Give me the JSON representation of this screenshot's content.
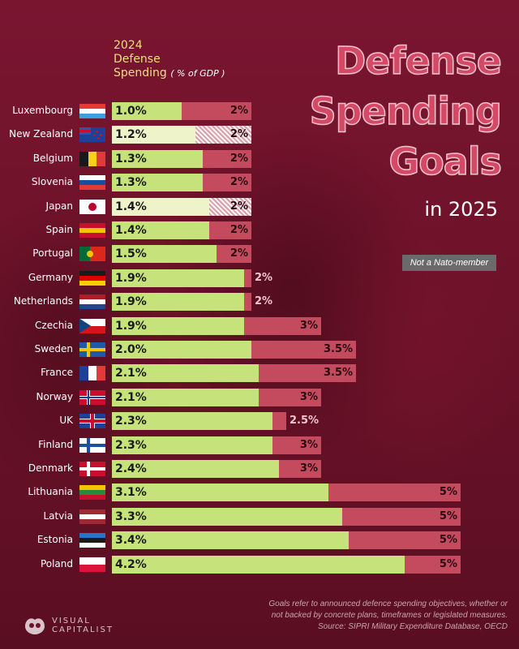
{
  "header": {
    "label_lines": [
      "2024",
      "Defense",
      "Spending"
    ],
    "unit": "( % of GDP )"
  },
  "title_lines": [
    "Defense",
    "Spending",
    "Goals"
  ],
  "subtitle": "in 2025",
  "legend": {
    "not_nato": "Not a Nato-member"
  },
  "footnote": [
    "Goals refer to announced defence spending objectives, whether or",
    "not backed by concrete plans, timeframes or legislated measures.",
    "Source: SIPRI Military Expenditure Database, OECD"
  ],
  "brand": {
    "line1": "VISUAL",
    "line2": "CAPITALIST"
  },
  "colors": {
    "current": "#c6e27a",
    "current_non_nato": "#eef3c9",
    "goal": "#c44a5e",
    "background": "#6d1229"
  },
  "chart_data": {
    "type": "bar",
    "orientation": "horizontal",
    "categories": [
      "Luxembourg",
      "New Zealand",
      "Belgium",
      "Slovenia",
      "Japan",
      "Spain",
      "Portugal",
      "Germany",
      "Netherlands",
      "Czechia",
      "Sweden",
      "France",
      "Norway",
      "UK",
      "Finland",
      "Denmark",
      "Lithuania",
      "Latvia",
      "Estonia",
      "Poland"
    ],
    "series": [
      {
        "values": [
          1.0,
          1.2,
          1.3,
          1.3,
          1.4,
          1.4,
          1.5,
          1.9,
          1.9,
          1.9,
          2.0,
          2.1,
          2.1,
          2.3,
          2.3,
          2.4,
          3.1,
          3.3,
          3.4,
          4.2
        ],
        "labels": [
          "1.0%",
          "1.2%",
          "1.3%",
          "1.3%",
          "1.4%",
          "1.4%",
          "1.5%",
          "1.9%",
          "1.9%",
          "1.9%",
          "2.0%",
          "2.1%",
          "2.1%",
          "2.3%",
          "2.3%",
          "2.4%",
          "3.1%",
          "3.3%",
          "3.4%",
          "4.2%"
        ]
      },
      {
        "values": [
          2,
          2,
          2,
          2,
          2,
          2,
          2,
          2,
          2,
          3,
          3.5,
          3.5,
          3,
          2.5,
          3,
          3,
          5,
          5,
          5,
          5
        ],
        "labels": [
          "2%",
          "2%",
          "2%",
          "2%",
          "2%",
          "2%",
          "2%",
          "2%",
          "2%",
          "3%",
          "3.5%",
          "3.5%",
          "3%",
          "2.5%",
          "3%",
          "3%",
          "5%",
          "5%",
          "5%",
          "5%"
        ]
      }
    ],
    "non_nato": [
      "New Zealand",
      "Japan"
    ],
    "xlim": [
      0,
      5.4
    ],
    "flags": {
      "Luxembourg": [
        "#e23a3a",
        "#ffffff",
        "#3aa0e0"
      ],
      "New Zealand": [
        "nz"
      ],
      "Belgium": [
        "v",
        "#1a1a1a",
        "#f5d11a",
        "#e23a3a"
      ],
      "Slovenia": [
        "#ffffff",
        "#1a4fa0",
        "#e23a3a"
      ],
      "Japan": [
        "jp"
      ],
      "Spain": [
        "#c8102e",
        "#f5c400",
        "#c8102e"
      ],
      "Portugal": [
        "pt"
      ],
      "Germany": [
        "#1a1a1a",
        "#dd0000",
        "#ffce00"
      ],
      "Netherlands": [
        "#ae1c28",
        "#ffffff",
        "#21468b"
      ],
      "Czechia": [
        "cz"
      ],
      "Sweden": [
        "cross",
        "#1f5aa6",
        "#f6c400"
      ],
      "France": [
        "v",
        "#1f3f99",
        "#ffffff",
        "#e23a3a"
      ],
      "Norway": [
        "cross2",
        "#c8102e",
        "#ffffff",
        "#1f3f99"
      ],
      "UK": [
        "uk"
      ],
      "Finland": [
        "cross",
        "#ffffff",
        "#1f4fa0"
      ],
      "Denmark": [
        "cross",
        "#c8102e",
        "#ffffff"
      ],
      "Lithuania": [
        "#f5c400",
        "#2a8a3a",
        "#c8102e"
      ],
      "Latvia": [
        "#9e2a33",
        "#ffffff",
        "#9e2a33"
      ],
      "Estonia": [
        "#2a74c8",
        "#1a1a1a",
        "#ffffff"
      ],
      "Poland": [
        "#ffffff",
        "#dc143c"
      ]
    }
  }
}
